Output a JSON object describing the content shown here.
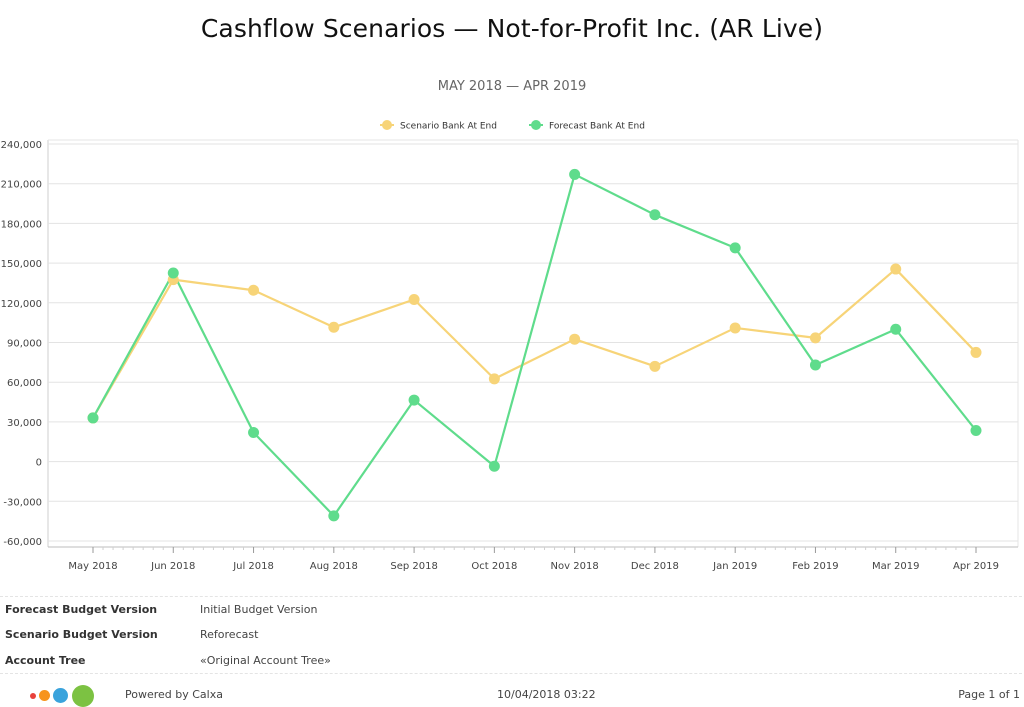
{
  "report": {
    "title": "Cashflow Scenarios — Not-for-Profit Inc. (AR Live)",
    "subtitle": "MAY 2018 — APR 2019"
  },
  "chart_data": {
    "type": "line",
    "categories": [
      "May 2018",
      "Jun 2018",
      "Jul 2018",
      "Aug 2018",
      "Sep 2018",
      "Oct 2018",
      "Nov 2018",
      "Dec 2018",
      "Jan 2019",
      "Feb 2019",
      "Mar 2019",
      "Apr 2019"
    ],
    "series": [
      {
        "name": "Scenario Bank At End",
        "color": "#f7d478",
        "values": [
          33000,
          137500,
          129500,
          101500,
          122500,
          62500,
          92500,
          72000,
          101000,
          93500,
          145500,
          82500
        ]
      },
      {
        "name": "Forecast Bank At End",
        "color": "#5fdc8c",
        "values": [
          33000,
          142500,
          22000,
          -41000,
          46500,
          -3500,
          217000,
          186500,
          161500,
          73000,
          100000,
          23500
        ]
      }
    ],
    "ylim": [
      -60000,
      240000
    ],
    "yticks": [
      -60000,
      -30000,
      0,
      30000,
      60000,
      90000,
      120000,
      150000,
      180000,
      210000,
      240000
    ],
    "ytick_labels": [
      "-60,000",
      "-30,000",
      "0",
      "30,000",
      "60,000",
      "90,000",
      "120,000",
      "150,000",
      "180,000",
      "210,000",
      "240,000"
    ],
    "grid": true,
    "legend": "top-center"
  },
  "info": {
    "rows": [
      {
        "label": "Forecast Budget Version",
        "value": "Initial Budget Version"
      },
      {
        "label": "Scenario Budget Version",
        "value": "Reforecast"
      },
      {
        "label": "Account Tree",
        "value": "«Original Account Tree»"
      }
    ]
  },
  "footer": {
    "powered_by": "Powered by Calxa",
    "timestamp": "10/04/2018 03:22",
    "page": "Page 1 of 1",
    "logo_colors": [
      "#e8413c",
      "#f7941d",
      "#3aa3dc",
      "#7cc242"
    ]
  }
}
